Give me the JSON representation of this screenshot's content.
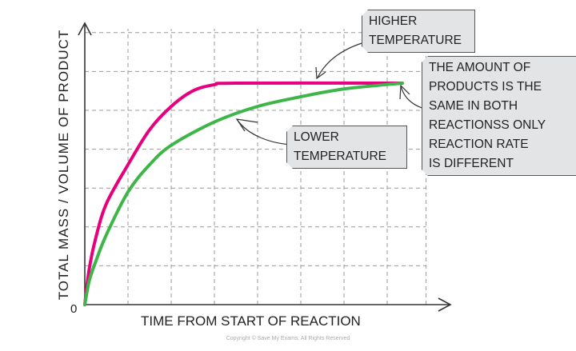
{
  "chart_data": {
    "type": "line",
    "title": "",
    "xlabel": "TIME FROM START OF REACTION",
    "ylabel": "TOTAL MASS / VOLUME OF PRODUCT",
    "origin_label": "0",
    "xlim": [
      0,
      8.5
    ],
    "ylim": [
      0,
      7.3
    ],
    "grid": true,
    "series": [
      {
        "name": "HIGHER TEMPERATURE",
        "color": "#e6007e",
        "x": [
          0,
          0.1,
          0.25,
          0.5,
          1,
          1.5,
          2,
          2.5,
          3,
          3.5,
          7.35
        ],
        "y": [
          0,
          0.9,
          1.7,
          2.6,
          3.6,
          4.5,
          5.1,
          5.5,
          5.66,
          5.7,
          5.7
        ]
      },
      {
        "name": "LOWER TEMPERATURE",
        "color": "#3db549",
        "x": [
          0,
          0.1,
          0.25,
          0.5,
          1,
          1.5,
          2,
          3,
          4,
          5,
          6,
          7.35
        ],
        "y": [
          0,
          0.6,
          1.1,
          1.8,
          2.9,
          3.6,
          4.1,
          4.7,
          5.1,
          5.35,
          5.55,
          5.7
        ]
      }
    ],
    "annotations": [
      {
        "id": "higher",
        "lines": [
          "HIGHER",
          "TEMPERATURE"
        ]
      },
      {
        "id": "lower",
        "lines": [
          "LOWER",
          "TEMPERATURE"
        ]
      },
      {
        "id": "note",
        "lines": [
          "THE AMOUNT OF",
          "PRODUCTS IS THE",
          "SAME IN BOTH",
          "REACTIONSS ONLY",
          "REACTION RATE",
          "IS DIFFERENT"
        ]
      }
    ]
  },
  "copyright": "Copyright © Save My Exams. All Rights Reserved"
}
